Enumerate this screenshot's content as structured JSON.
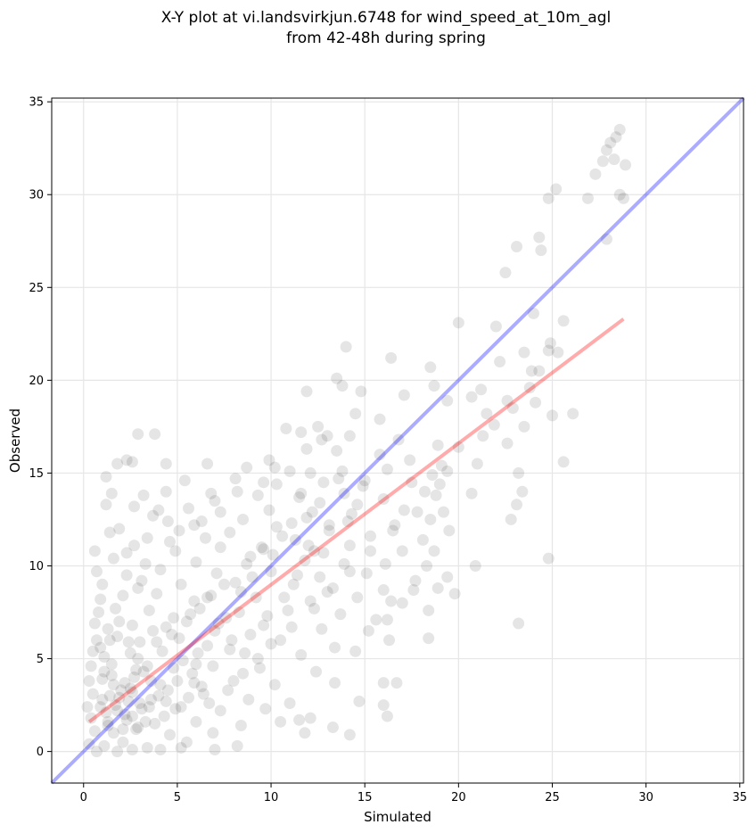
{
  "chart_data": {
    "type": "scatter",
    "title_line1": "X-Y plot at vi.landsvirkjun.6748 for wind_speed_at_10m_agl",
    "title_line2": "from 42-48h during spring",
    "xlabel": "Simulated",
    "ylabel": "Observed",
    "xlim": [
      -1.7,
      35.2
    ],
    "ylim": [
      -1.7,
      35.2
    ],
    "xticks": [
      0,
      5,
      10,
      15,
      20,
      25,
      30,
      35
    ],
    "yticks": [
      0,
      5,
      10,
      15,
      20,
      25,
      30,
      35
    ],
    "grid": true,
    "colors": {
      "points": "#000000",
      "identity_line": "#0000ff",
      "fit_line": "#ff0000",
      "grid": "#e6e6e6"
    },
    "identity_line": {
      "x": [
        -1.7,
        35.2
      ],
      "y": [
        -1.7,
        35.2
      ]
    },
    "fit_line": {
      "x": [
        0.3,
        28.8
      ],
      "y": [
        1.6,
        23.3
      ]
    },
    "points": [
      [
        28.6,
        33.5
      ],
      [
        28.4,
        33.1
      ],
      [
        28.1,
        32.8
      ],
      [
        27.9,
        32.4
      ],
      [
        27.7,
        31.8
      ],
      [
        28.3,
        31.9
      ],
      [
        28.9,
        31.6
      ],
      [
        27.3,
        31.1
      ],
      [
        25.2,
        30.3
      ],
      [
        24.8,
        29.8
      ],
      [
        26.9,
        29.8
      ],
      [
        28.6,
        30.0
      ],
      [
        28.8,
        29.8
      ],
      [
        27.9,
        27.6
      ],
      [
        23.1,
        27.2
      ],
      [
        24.3,
        27.7
      ],
      [
        24.4,
        27.0
      ],
      [
        22.5,
        25.8
      ],
      [
        20.0,
        23.1
      ],
      [
        22.0,
        22.9
      ],
      [
        25.6,
        23.2
      ],
      [
        24.0,
        23.6
      ],
      [
        24.8,
        21.6
      ],
      [
        24.9,
        22.0
      ],
      [
        25.3,
        21.5
      ],
      [
        22.2,
        21.0
      ],
      [
        23.5,
        21.5
      ],
      [
        16.4,
        21.2
      ],
      [
        14.0,
        21.8
      ],
      [
        18.5,
        20.7
      ],
      [
        23.9,
        20.5
      ],
      [
        13.5,
        20.1
      ],
      [
        13.8,
        19.7
      ],
      [
        18.7,
        19.7
      ],
      [
        21.2,
        19.5
      ],
      [
        14.8,
        19.4
      ],
      [
        11.9,
        19.4
      ],
      [
        17.1,
        19.2
      ],
      [
        20.7,
        19.1
      ],
      [
        24.1,
        18.8
      ],
      [
        22.6,
        18.9
      ],
      [
        19.4,
        18.9
      ],
      [
        25.0,
        18.1
      ],
      [
        26.1,
        18.2
      ],
      [
        23.5,
        17.5
      ],
      [
        21.5,
        18.2
      ],
      [
        14.5,
        18.2
      ],
      [
        15.8,
        17.9
      ],
      [
        12.5,
        17.5
      ],
      [
        10.8,
        17.4
      ],
      [
        11.6,
        17.2
      ],
      [
        2.9,
        17.1
      ],
      [
        3.8,
        17.1
      ],
      [
        14.2,
        17.0
      ],
      [
        13.0,
        17.0
      ],
      [
        16.8,
        16.8
      ],
      [
        22.6,
        16.6
      ],
      [
        18.9,
        16.5
      ],
      [
        13.5,
        16.2
      ],
      [
        15.8,
        16.0
      ],
      [
        9.9,
        15.7
      ],
      [
        17.4,
        15.7
      ],
      [
        19.4,
        15.1
      ],
      [
        21.0,
        15.5
      ],
      [
        25.6,
        15.6
      ],
      [
        2.3,
        15.7
      ],
      [
        1.8,
        15.5
      ],
      [
        2.6,
        15.6
      ],
      [
        4.4,
        15.5
      ],
      [
        6.6,
        15.5
      ],
      [
        8.7,
        15.3
      ],
      [
        11.0,
        15.1
      ],
      [
        12.1,
        15.0
      ],
      [
        13.8,
        15.1
      ],
      [
        16.2,
        15.2
      ],
      [
        18.6,
        14.9
      ],
      [
        23.2,
        15.0
      ],
      [
        1.2,
        14.8
      ],
      [
        5.4,
        14.6
      ],
      [
        8.1,
        14.7
      ],
      [
        10.3,
        14.4
      ],
      [
        12.8,
        14.5
      ],
      [
        14.9,
        14.3
      ],
      [
        17.5,
        14.5
      ],
      [
        19.0,
        14.4
      ],
      [
        23.4,
        14.0
      ],
      [
        4.4,
        14.0
      ],
      [
        3.2,
        13.8
      ],
      [
        1.5,
        13.9
      ],
      [
        6.8,
        13.9
      ],
      [
        9.3,
        13.8
      ],
      [
        11.5,
        13.7
      ],
      [
        13.9,
        13.9
      ],
      [
        16.0,
        13.6
      ],
      [
        18.8,
        13.8
      ],
      [
        20.7,
        13.9
      ],
      [
        1.2,
        13.3
      ],
      [
        2.7,
        13.2
      ],
      [
        4.0,
        13.0
      ],
      [
        5.6,
        13.1
      ],
      [
        7.3,
        12.9
      ],
      [
        9.9,
        13.0
      ],
      [
        12.2,
        12.9
      ],
      [
        14.3,
        12.8
      ],
      [
        17.1,
        13.0
      ],
      [
        19.2,
        12.9
      ],
      [
        23.1,
        13.3
      ],
      [
        0.6,
        10.8
      ],
      [
        1.4,
        11.8
      ],
      [
        3.4,
        11.5
      ],
      [
        5.1,
        11.9
      ],
      [
        7.8,
        11.8
      ],
      [
        10.6,
        11.6
      ],
      [
        13.1,
        11.9
      ],
      [
        15.3,
        11.6
      ],
      [
        18.1,
        11.4
      ],
      [
        19.5,
        11.9
      ],
      [
        1.9,
        12.0
      ],
      [
        4.5,
        12.4
      ],
      [
        6.3,
        12.4
      ],
      [
        8.5,
        12.5
      ],
      [
        11.1,
        12.3
      ],
      [
        16.6,
        12.2
      ],
      [
        18.5,
        12.5
      ],
      [
        22.8,
        12.5
      ],
      [
        2.7,
        11.1
      ],
      [
        4.9,
        10.8
      ],
      [
        7.3,
        11.0
      ],
      [
        9.6,
        10.9
      ],
      [
        12.3,
        10.8
      ],
      [
        14.2,
        11.1
      ],
      [
        17.0,
        10.8
      ],
      [
        18.7,
        10.8
      ],
      [
        20.9,
        10.0
      ],
      [
        24.8,
        10.4
      ],
      [
        1.6,
        10.4
      ],
      [
        3.3,
        10.1
      ],
      [
        6.0,
        10.2
      ],
      [
        8.9,
        10.5
      ],
      [
        11.8,
        10.3
      ],
      [
        13.9,
        10.1
      ],
      [
        16.1,
        10.1
      ],
      [
        18.3,
        10.0
      ],
      [
        19.4,
        9.4
      ],
      [
        0.7,
        9.7
      ],
      [
        2.3,
        9.5
      ],
      [
        4.1,
        9.8
      ],
      [
        7.1,
        9.6
      ],
      [
        10.0,
        9.7
      ],
      [
        12.6,
        9.4
      ],
      [
        15.1,
        9.6
      ],
      [
        17.7,
        9.2
      ],
      [
        19.8,
        8.5
      ],
      [
        1.0,
        9.0
      ],
      [
        2.9,
        8.8
      ],
      [
        5.2,
        9.0
      ],
      [
        8.1,
        9.1
      ],
      [
        11.2,
        9.0
      ],
      [
        13.3,
        8.8
      ],
      [
        16.0,
        8.7
      ],
      [
        18.9,
        8.8
      ],
      [
        17.6,
        8.7
      ],
      [
        0.9,
        8.2
      ],
      [
        2.1,
        8.4
      ],
      [
        3.9,
        8.5
      ],
      [
        6.6,
        8.3
      ],
      [
        9.2,
        8.3
      ],
      [
        12.1,
        8.1
      ],
      [
        14.6,
        8.3
      ],
      [
        16.4,
        8.1
      ],
      [
        17.0,
        8.0
      ],
      [
        0.8,
        7.5
      ],
      [
        1.7,
        7.7
      ],
      [
        3.5,
        7.6
      ],
      [
        5.7,
        7.4
      ],
      [
        8.3,
        7.5
      ],
      [
        10.9,
        7.6
      ],
      [
        13.7,
        7.4
      ],
      [
        15.6,
        7.1
      ],
      [
        18.4,
        7.6
      ],
      [
        0.6,
        6.9
      ],
      [
        1.3,
        6.6
      ],
      [
        2.6,
        6.8
      ],
      [
        4.4,
        6.7
      ],
      [
        7.0,
        6.5
      ],
      [
        9.6,
        6.8
      ],
      [
        12.7,
        6.6
      ],
      [
        16.2,
        7.1
      ],
      [
        23.2,
        6.9
      ],
      [
        0.7,
        6.0
      ],
      [
        1.8,
        6.2
      ],
      [
        3.0,
        5.9
      ],
      [
        5.1,
        6.1
      ],
      [
        7.9,
        6.0
      ],
      [
        10.5,
        6.0
      ],
      [
        13.4,
        5.6
      ],
      [
        16.3,
        6.0
      ],
      [
        18.4,
        6.1
      ],
      [
        0.5,
        5.4
      ],
      [
        1.1,
        5.1
      ],
      [
        2.5,
        5.3
      ],
      [
        4.2,
        5.4
      ],
      [
        6.1,
        5.3
      ],
      [
        8.6,
        5.3
      ],
      [
        11.6,
        5.2
      ],
      [
        14.5,
        5.4
      ],
      [
        15.2,
        6.5
      ],
      [
        0.4,
        4.6
      ],
      [
        1.5,
        4.7
      ],
      [
        2.8,
        4.4
      ],
      [
        4.8,
        4.5
      ],
      [
        6.9,
        4.6
      ],
      [
        9.4,
        4.5
      ],
      [
        12.4,
        4.3
      ],
      [
        13.4,
        3.7
      ],
      [
        16.0,
        3.7
      ],
      [
        0.3,
        3.8
      ],
      [
        1.0,
        3.9
      ],
      [
        2.2,
        3.7
      ],
      [
        3.6,
        3.8
      ],
      [
        5.9,
        3.7
      ],
      [
        8.0,
        3.8
      ],
      [
        10.2,
        3.6
      ],
      [
        16.7,
        3.7
      ],
      [
        14.7,
        2.7
      ],
      [
        0.5,
        3.1
      ],
      [
        1.4,
        3.0
      ],
      [
        2.6,
        3.2
      ],
      [
        4.0,
        3.0
      ],
      [
        6.4,
        3.1
      ],
      [
        8.8,
        2.8
      ],
      [
        11.0,
        2.6
      ],
      [
        16.0,
        2.5
      ],
      [
        13.3,
        1.3
      ],
      [
        0.2,
        2.4
      ],
      [
        0.9,
        2.4
      ],
      [
        1.8,
        2.2
      ],
      [
        3.1,
        2.3
      ],
      [
        5.2,
        2.4
      ],
      [
        7.3,
        2.2
      ],
      [
        9.7,
        2.3
      ],
      [
        11.5,
        1.7
      ],
      [
        16.2,
        1.9
      ],
      [
        0.4,
        1.8
      ],
      [
        1.3,
        1.6
      ],
      [
        2.3,
        1.7
      ],
      [
        3.8,
        1.5
      ],
      [
        6.0,
        1.6
      ],
      [
        8.4,
        1.4
      ],
      [
        10.5,
        1.6
      ],
      [
        12.1,
        1.8
      ],
      [
        14.2,
        0.9
      ],
      [
        0.6,
        1.1
      ],
      [
        1.6,
        1.0
      ],
      [
        2.8,
        1.2
      ],
      [
        4.6,
        0.9
      ],
      [
        6.9,
        1.0
      ],
      [
        8.2,
        0.3
      ],
      [
        11.8,
        1.0
      ],
      [
        7.0,
        0.1
      ],
      [
        5.2,
        0.2
      ],
      [
        0.3,
        0.4
      ],
      [
        1.1,
        0.3
      ],
      [
        2.1,
        0.5
      ],
      [
        3.4,
        0.2
      ],
      [
        5.5,
        0.5
      ],
      [
        2.6,
        0.1
      ],
      [
        1.8,
        0.0
      ],
      [
        0.7,
        0.0
      ],
      [
        4.1,
        0.1
      ],
      [
        1.5,
        4.1
      ],
      [
        2.0,
        3.3
      ],
      [
        2.4,
        2.7
      ],
      [
        1.9,
        2.9
      ],
      [
        2.2,
        2.0
      ],
      [
        1.7,
        2.5
      ],
      [
        2.6,
        1.9
      ],
      [
        1.2,
        2.1
      ],
      [
        3.0,
        2.6
      ],
      [
        2.5,
        3.4
      ],
      [
        1.6,
        3.6
      ],
      [
        3.3,
        1.6
      ],
      [
        2.9,
        1.3
      ],
      [
        1.3,
        1.4
      ],
      [
        2.1,
        1.2
      ],
      [
        3.6,
        2.8
      ],
      [
        2.7,
        4.0
      ],
      [
        1.0,
        2.8
      ],
      [
        3.2,
        4.3
      ],
      [
        4.5,
        3.3
      ],
      [
        4.9,
        2.3
      ],
      [
        5.6,
        2.9
      ],
      [
        4.3,
        1.9
      ],
      [
        5.8,
        4.2
      ],
      [
        6.3,
        3.5
      ],
      [
        3.9,
        5.9
      ],
      [
        4.7,
        6.3
      ],
      [
        5.5,
        7.0
      ],
      [
        6.2,
        7.7
      ],
      [
        6.8,
        8.4
      ],
      [
        7.5,
        9.0
      ],
      [
        5.9,
        8.1
      ],
      [
        4.8,
        7.2
      ],
      [
        3.7,
        6.5
      ],
      [
        7.6,
        7.2
      ],
      [
        8.4,
        8.6
      ],
      [
        9.0,
        9.4
      ],
      [
        8.7,
        10.1
      ],
      [
        9.5,
        11.0
      ],
      [
        10.3,
        12.1
      ],
      [
        11.3,
        11.4
      ],
      [
        10.1,
        10.6
      ],
      [
        11.9,
        12.6
      ],
      [
        12.6,
        13.4
      ],
      [
        13.1,
        12.2
      ],
      [
        12.0,
        11.1
      ],
      [
        14.1,
        12.4
      ],
      [
        14.6,
        13.3
      ],
      [
        15.0,
        14.6
      ],
      [
        13.6,
        14.7
      ],
      [
        11.6,
        13.9
      ],
      [
        6.6,
        5.7
      ],
      [
        7.2,
        6.9
      ],
      [
        5.3,
        4.9
      ],
      [
        6.0,
        4.7
      ],
      [
        7.8,
        5.5
      ],
      [
        8.9,
        6.3
      ],
      [
        9.8,
        7.3
      ],
      [
        10.7,
        8.3
      ],
      [
        11.4,
        9.5
      ],
      [
        12.8,
        10.7
      ],
      [
        3.1,
        9.2
      ],
      [
        2.3,
        10.7
      ],
      [
        4.6,
        11.3
      ],
      [
        3.7,
        12.7
      ],
      [
        5.9,
        12.2
      ],
      [
        6.5,
        11.5
      ],
      [
        7.0,
        13.5
      ],
      [
        8.2,
        14.0
      ],
      [
        9.6,
        14.5
      ],
      [
        10.2,
        15.3
      ],
      [
        11.9,
        16.3
      ],
      [
        12.7,
        16.8
      ],
      [
        1.4,
        6.0
      ],
      [
        0.9,
        5.6
      ],
      [
        1.9,
        7.0
      ],
      [
        2.4,
        5.9
      ],
      [
        1.1,
        4.3
      ],
      [
        2.9,
        5.0
      ],
      [
        3.4,
        4.6
      ],
      [
        4.1,
        3.6
      ],
      [
        3.5,
        2.4
      ],
      [
        4.4,
        2.7
      ],
      [
        5.0,
        3.8
      ],
      [
        6.7,
        2.6
      ],
      [
        7.7,
        3.3
      ],
      [
        8.5,
        4.2
      ],
      [
        9.3,
        5.0
      ],
      [
        10.0,
        5.8
      ],
      [
        11.1,
        6.7
      ],
      [
        12.3,
        7.7
      ],
      [
        13.0,
        8.6
      ],
      [
        14.2,
        9.7
      ],
      [
        15.3,
        10.8
      ],
      [
        16.5,
        11.9
      ],
      [
        17.8,
        12.9
      ],
      [
        18.2,
        14.0
      ],
      [
        19.1,
        15.4
      ],
      [
        20.0,
        16.4
      ],
      [
        21.3,
        17.0
      ],
      [
        21.9,
        17.6
      ],
      [
        22.9,
        18.5
      ],
      [
        23.8,
        19.6
      ],
      [
        24.3,
        20.5
      ]
    ]
  }
}
